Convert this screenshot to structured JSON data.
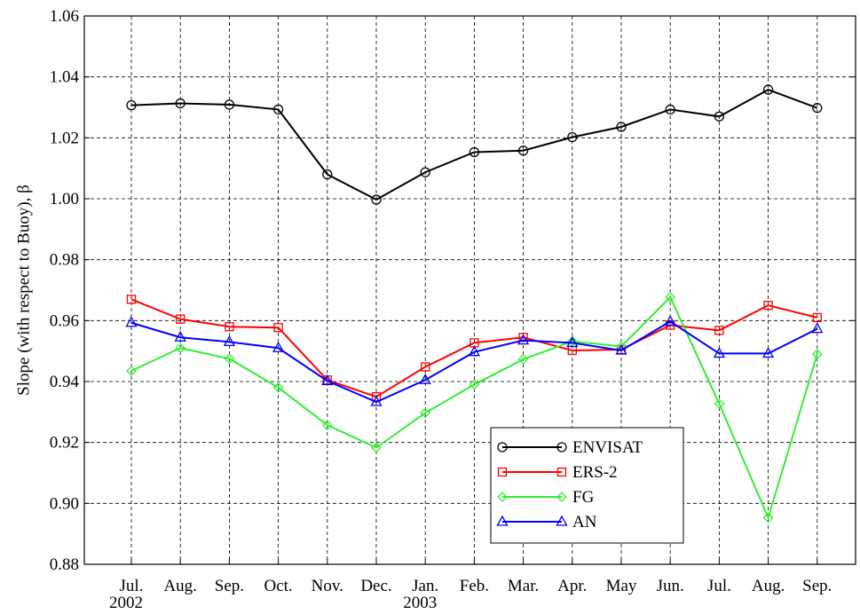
{
  "chart_data": {
    "type": "line",
    "ylabel": "Slope  (with respect to Buoy),  β",
    "categories": [
      "Jul. 2002",
      "Aug.",
      "Sep.",
      "Oct.",
      "Nov.",
      "Dec.",
      "Jan. 2003",
      "Feb.",
      "Mar.",
      "Apr.",
      "May",
      "Jun.",
      "Jul.",
      "Aug.",
      "Sep."
    ],
    "ylim": [
      0.88,
      1.06
    ],
    "yticks": [
      0.88,
      {
        "value": 0.9,
        "label": "0.90"
      },
      0.92,
      0.94,
      0.96,
      0.98,
      {
        "value": 1,
        "label": "1.00"
      },
      1.02,
      1.04,
      1.06
    ],
    "grid": true,
    "legend": "lower right",
    "series": [
      {
        "name": "ENVISAT",
        "color": "#000000",
        "marker": "circle",
        "values": [
          1.0307,
          1.0313,
          1.0309,
          1.0293,
          1.008,
          0.9997,
          1.0087,
          1.0153,
          1.0158,
          1.0202,
          1.0236,
          1.0293,
          1.027,
          1.0358,
          1.0298
        ]
      },
      {
        "name": "ERS-2",
        "color": "#ff0000",
        "marker": "square",
        "values": [
          0.967,
          0.9605,
          0.958,
          0.9577,
          0.9405,
          0.935,
          0.9448,
          0.9527,
          0.9545,
          0.9502,
          0.9505,
          0.9585,
          0.9568,
          0.965,
          0.961
        ]
      },
      {
        "name": "FG",
        "color": "#33ee33",
        "marker": "diamond",
        "values": [
          0.9435,
          0.951,
          0.9475,
          0.938,
          0.9257,
          0.9183,
          0.9297,
          0.939,
          0.9473,
          0.9532,
          0.9515,
          0.9677,
          0.9327,
          0.8953,
          0.949
        ]
      },
      {
        "name": "AN",
        "color": "#0000ff",
        "marker": "triangle",
        "values": [
          0.9593,
          0.9545,
          0.953,
          0.951,
          0.9402,
          0.9333,
          0.9405,
          0.9497,
          0.9535,
          0.9527,
          0.9502,
          0.9597,
          0.9492,
          0.9492,
          0.9573
        ]
      }
    ]
  }
}
